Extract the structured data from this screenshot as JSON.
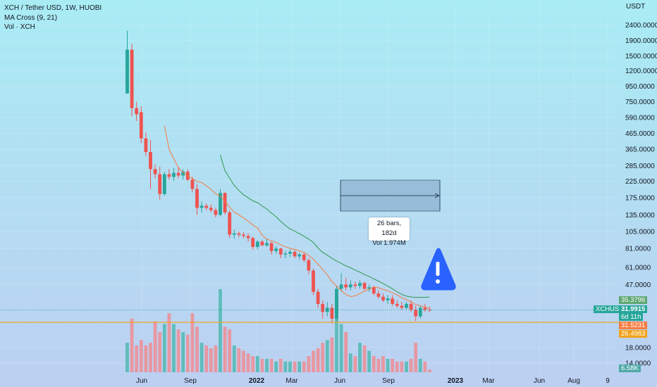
{
  "legend": {
    "symbol_line": "XCH / Tether USD, 1W, HUOBI",
    "ma_line": "MA Cross (9, 21)",
    "vol_line": "Vol · XCH"
  },
  "price_axis": {
    "unit": "USDT",
    "ticks": [
      "2400.0000",
      "1900.0000",
      "1500.0000",
      "1200.0000",
      "950.0000",
      "750.0000",
      "590.0000",
      "465.0000",
      "365.0000",
      "285.0000",
      "225.0000",
      "175.0000",
      "135.0000",
      "105.0000",
      "81.0000",
      "61.0000",
      "47.0000",
      "18.0000",
      "14.0000"
    ]
  },
  "time_axis": {
    "labels": [
      "Jun",
      "Sep",
      "2022",
      "Mar",
      "Jun",
      "Sep",
      "2023",
      "Mar",
      "Jun",
      "Aug",
      "9"
    ]
  },
  "measure": {
    "bars_text": "26 bars, 182d",
    "vol_text": "Vol 1.974M"
  },
  "badges": {
    "ma_fast_value": "35.3796",
    "symbol": "XCHUSDT",
    "price": "31.9915",
    "countdown": "6d 11h",
    "ma_slow_value": "31.5231",
    "line_value": "26.4983",
    "volume_value": "6.58K"
  },
  "colors": {
    "up": "#26a69a",
    "down": "#ef5350",
    "ma_fast": "#f57c40",
    "ma_slow": "#2e9a4a",
    "horizontal_line": "#f2a31b",
    "warning": "#2962ff"
  },
  "chart_data": {
    "type": "candlestick",
    "title": "XCH / Tether USD, 1W, HUOBI",
    "y_scale": "log",
    "ylim": [
      12,
      2600
    ],
    "x_labels": [
      "Jun",
      "Sep",
      "2022",
      "Mar",
      "Jun",
      "Sep",
      "2023",
      "Mar",
      "Jun",
      "Aug",
      "9"
    ],
    "horizontal_line": 26.4983,
    "last_price": 31.9915,
    "candles": [
      {
        "o": 850,
        "h": 2200,
        "l": 850,
        "c": 1650
      },
      {
        "o": 1650,
        "h": 1800,
        "l": 600,
        "c": 680
      },
      {
        "o": 680,
        "h": 750,
        "l": 560,
        "c": 620
      },
      {
        "o": 640,
        "h": 700,
        "l": 400,
        "c": 430
      },
      {
        "o": 430,
        "h": 470,
        "l": 330,
        "c": 350
      },
      {
        "o": 350,
        "h": 420,
        "l": 200,
        "c": 270
      },
      {
        "o": 270,
        "h": 290,
        "l": 235,
        "c": 250
      },
      {
        "o": 250,
        "h": 280,
        "l": 170,
        "c": 185
      },
      {
        "o": 185,
        "h": 260,
        "l": 180,
        "c": 250
      },
      {
        "o": 250,
        "h": 270,
        "l": 230,
        "c": 240
      },
      {
        "o": 240,
        "h": 275,
        "l": 225,
        "c": 255
      },
      {
        "o": 255,
        "h": 280,
        "l": 235,
        "c": 245
      },
      {
        "o": 245,
        "h": 270,
        "l": 230,
        "c": 260
      },
      {
        "o": 260,
        "h": 270,
        "l": 225,
        "c": 230
      },
      {
        "o": 230,
        "h": 240,
        "l": 190,
        "c": 200
      },
      {
        "o": 200,
        "h": 215,
        "l": 135,
        "c": 150
      },
      {
        "o": 150,
        "h": 165,
        "l": 140,
        "c": 155
      },
      {
        "o": 155,
        "h": 160,
        "l": 145,
        "c": 150
      },
      {
        "o": 150,
        "h": 158,
        "l": 140,
        "c": 145
      },
      {
        "o": 145,
        "h": 150,
        "l": 130,
        "c": 135
      },
      {
        "o": 135,
        "h": 200,
        "l": 132,
        "c": 188
      },
      {
        "o": 188,
        "h": 190,
        "l": 135,
        "c": 140
      },
      {
        "o": 140,
        "h": 145,
        "l": 95,
        "c": 100
      },
      {
        "o": 100,
        "h": 108,
        "l": 94,
        "c": 102
      },
      {
        "o": 102,
        "h": 105,
        "l": 96,
        "c": 100
      },
      {
        "o": 100,
        "h": 104,
        "l": 95,
        "c": 98
      },
      {
        "o": 98,
        "h": 102,
        "l": 90,
        "c": 95
      },
      {
        "o": 95,
        "h": 97,
        "l": 80,
        "c": 83
      },
      {
        "o": 83,
        "h": 92,
        "l": 80,
        "c": 90
      },
      {
        "o": 90,
        "h": 92,
        "l": 84,
        "c": 85
      },
      {
        "o": 85,
        "h": 94,
        "l": 83,
        "c": 88
      },
      {
        "o": 88,
        "h": 90,
        "l": 74,
        "c": 78
      },
      {
        "o": 78,
        "h": 84,
        "l": 75,
        "c": 81
      },
      {
        "o": 81,
        "h": 82,
        "l": 70,
        "c": 74
      },
      {
        "o": 74,
        "h": 78,
        "l": 70,
        "c": 75
      },
      {
        "o": 75,
        "h": 80,
        "l": 71,
        "c": 77
      },
      {
        "o": 77,
        "h": 79,
        "l": 70,
        "c": 72
      },
      {
        "o": 72,
        "h": 76,
        "l": 69,
        "c": 74
      },
      {
        "o": 74,
        "h": 76,
        "l": 66,
        "c": 68
      },
      {
        "o": 68,
        "h": 70,
        "l": 55,
        "c": 58
      },
      {
        "o": 58,
        "h": 60,
        "l": 40,
        "c": 42
      },
      {
        "o": 42,
        "h": 44,
        "l": 33,
        "c": 35
      },
      {
        "o": 35,
        "h": 37,
        "l": 28,
        "c": 31
      },
      {
        "o": 31,
        "h": 36,
        "l": 29,
        "c": 33
      },
      {
        "o": 33,
        "h": 35,
        "l": 26,
        "c": 28
      },
      {
        "o": 28,
        "h": 46,
        "l": 27,
        "c": 44
      },
      {
        "o": 44,
        "h": 56,
        "l": 42,
        "c": 47
      },
      {
        "o": 47,
        "h": 52,
        "l": 43,
        "c": 45
      },
      {
        "o": 45,
        "h": 50,
        "l": 43,
        "c": 47
      },
      {
        "o": 47,
        "h": 49,
        "l": 44,
        "c": 46
      },
      {
        "o": 46,
        "h": 50,
        "l": 44,
        "c": 48
      },
      {
        "o": 48,
        "h": 49,
        "l": 43,
        "c": 44
      },
      {
        "o": 44,
        "h": 47,
        "l": 42,
        "c": 45
      },
      {
        "o": 45,
        "h": 46,
        "l": 40,
        "c": 41
      },
      {
        "o": 41,
        "h": 43,
        "l": 38,
        "c": 39
      },
      {
        "o": 39,
        "h": 41,
        "l": 36,
        "c": 37
      },
      {
        "o": 37,
        "h": 40,
        "l": 35,
        "c": 38
      },
      {
        "o": 38,
        "h": 40,
        "l": 34,
        "c": 35
      },
      {
        "o": 35,
        "h": 37,
        "l": 33,
        "c": 34
      },
      {
        "o": 34,
        "h": 36,
        "l": 32,
        "c": 33
      },
      {
        "o": 33,
        "h": 36,
        "l": 32,
        "c": 35
      },
      {
        "o": 35,
        "h": 37,
        "l": 31,
        "c": 32
      },
      {
        "o": 32,
        "h": 34,
        "l": 27,
        "c": 29
      },
      {
        "o": 29,
        "h": 34,
        "l": 28,
        "c": 33
      },
      {
        "o": 33,
        "h": 35,
        "l": 31,
        "c": 32
      },
      {
        "o": 32,
        "h": 33.5,
        "l": 31,
        "c": 31.99
      }
    ],
    "volume": [
      0.55,
      1,
      0.5,
      0.6,
      0.5,
      0.55,
      0.95,
      0.75,
      0.9,
      1.1,
      0.9,
      0.8,
      0.75,
      0.7,
      1.1,
      0.85,
      0.55,
      0.5,
      0.45,
      0.5,
      1.55,
      0.85,
      0.8,
      0.5,
      0.45,
      0.4,
      0.35,
      0.3,
      0.3,
      0.25,
      0.25,
      0.25,
      0.2,
      0.25,
      0.2,
      0.2,
      0.2,
      0.2,
      0.2,
      0.3,
      0.4,
      0.45,
      0.55,
      0.6,
      0.65,
      1.4,
      0.9,
      0.75,
      0.35,
      0.3,
      0.55,
      0.5,
      0.4,
      0.3,
      0.25,
      0.3,
      0.25,
      0.25,
      0.2,
      0.2,
      0.2,
      0.25,
      0.55,
      0.25,
      0.2,
      0.05
    ]
  }
}
